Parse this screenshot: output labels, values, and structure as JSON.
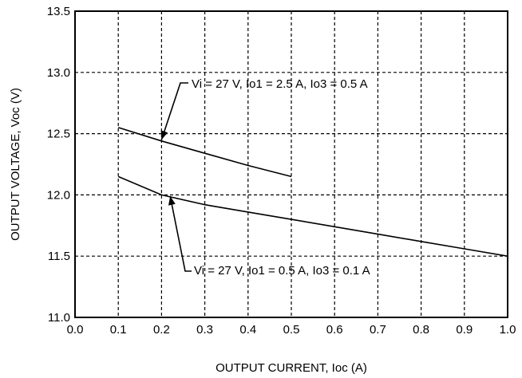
{
  "chart_data": {
    "type": "line",
    "title": "",
    "xlabel": "OUTPUT CURRENT,  Ioc (A)",
    "ylabel": "OUTPUT VOLTAGE, Voc (V)",
    "xlim": [
      0.0,
      1.0
    ],
    "ylim": [
      11.0,
      13.5
    ],
    "x_ticks": [
      "0.0",
      "0.1",
      "0.2",
      "0.3",
      "0.4",
      "0.5",
      "0.6",
      "0.7",
      "0.8",
      "0.9",
      "1.0"
    ],
    "y_ticks": [
      "11.0",
      "11.5",
      "12.0",
      "12.5",
      "13.0",
      "13.5"
    ],
    "grid": true,
    "grid_style": "dashed",
    "series": [
      {
        "x": [
          0.1,
          0.2,
          0.3,
          0.4,
          0.5
        ],
        "y": [
          12.55,
          12.44,
          12.34,
          12.24,
          12.15
        ]
      },
      {
        "x": [
          0.1,
          0.2,
          0.3,
          0.4,
          0.5,
          0.6,
          0.7,
          0.8,
          0.9,
          1.0
        ],
        "y": [
          12.15,
          12.0,
          11.92,
          11.86,
          11.8,
          11.74,
          11.68,
          11.62,
          11.56,
          11.5
        ]
      }
    ],
    "annotations": [
      {
        "text": "Vi = 27 V, Io1 = 2.5 A, Io3 = 0.5 A",
        "points_to": {
          "x": 0.2,
          "y": 12.45
        }
      },
      {
        "text": "Vi = 27 V, Io1 = 0.5 A, Io3 = 0.1 A",
        "points_to": {
          "x": 0.22,
          "y": 11.99
        }
      }
    ],
    "colors": {
      "line": "#000000",
      "grid": "#000000",
      "background": "#ffffff"
    }
  }
}
